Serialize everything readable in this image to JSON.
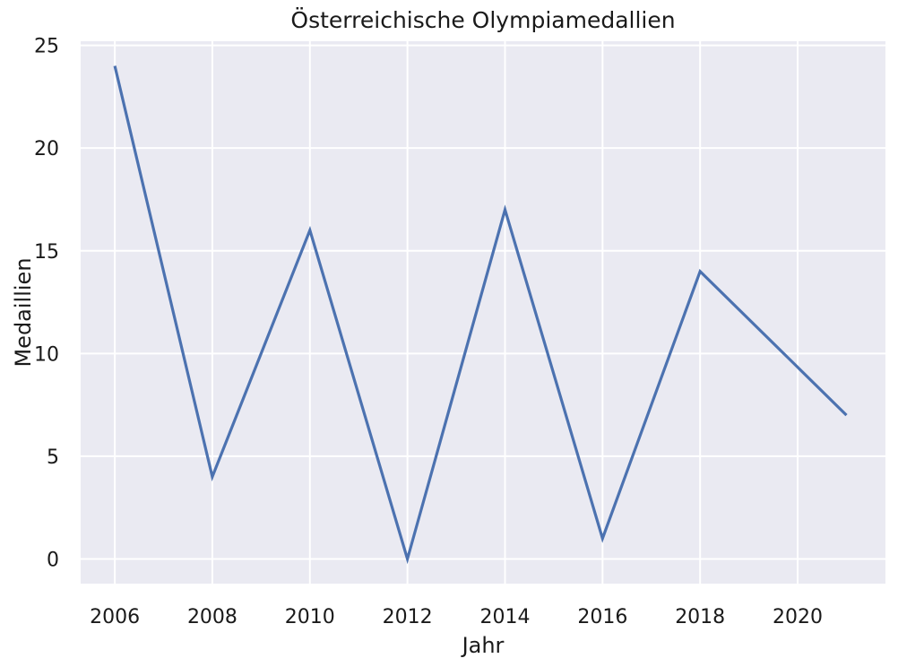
{
  "chart_data": {
    "type": "line",
    "title": "Österreichische Olympiamedallien",
    "xlabel": "Jahr",
    "ylabel": "Medaillien",
    "xlim": [
      2005.3,
      2021.8
    ],
    "ylim": [
      -1.2,
      25.2
    ],
    "xticks": [
      2006,
      2008,
      2010,
      2012,
      2014,
      2016,
      2018,
      2020
    ],
    "yticks": [
      0,
      5,
      10,
      15,
      20,
      25
    ],
    "grid": true,
    "series": [
      {
        "color": "#4c72b0",
        "x": [
          2006,
          2008,
          2010,
          2012,
          2014,
          2016,
          2018,
          2021
        ],
        "y": [
          24,
          4,
          16,
          0,
          17,
          1,
          14,
          7
        ]
      }
    ]
  }
}
